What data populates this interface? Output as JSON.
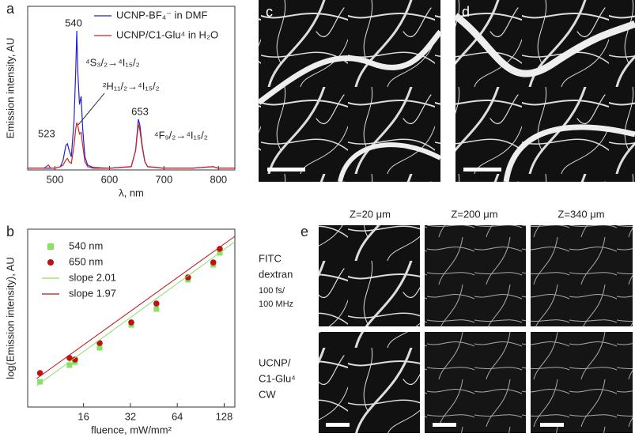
{
  "chart_data": [
    {
      "type": "line",
      "panel": "a",
      "x": [
        450,
        480,
        488,
        492,
        500,
        510,
        515,
        520,
        523,
        526,
        530,
        535,
        538,
        540,
        542,
        545,
        548,
        551,
        555,
        560,
        570,
        600,
        640,
        648,
        653,
        656,
        660,
        665,
        670,
        700,
        750,
        790,
        800,
        830
      ],
      "series": [
        {
          "name": "UCNP-BF₄⁻ in DMF",
          "color": "#2222cc",
          "values": [
            0.01,
            0.01,
            0.01,
            0.01,
            0.01,
            0.02,
            0.06,
            0.15,
            0.16,
            0.12,
            0.08,
            0.3,
            0.6,
            0.85,
            0.6,
            0.4,
            0.45,
            0.25,
            0.08,
            0.03,
            0.015,
            0.01,
            0.02,
            0.12,
            0.31,
            0.27,
            0.15,
            0.05,
            0.02,
            0.01,
            0.01,
            0.02,
            0.01,
            0.01
          ]
        },
        {
          "name": "UCNP/C1-Glu⁴ in H₂O",
          "color": "#cc2222",
          "values": [
            0.01,
            0.01,
            0.03,
            0.01,
            0.01,
            0.02,
            0.03,
            0.06,
            0.07,
            0.05,
            0.04,
            0.15,
            0.25,
            0.29,
            0.27,
            0.22,
            0.23,
            0.15,
            0.05,
            0.02,
            0.01,
            0.01,
            0.02,
            0.12,
            0.28,
            0.24,
            0.14,
            0.05,
            0.02,
            0.01,
            0.01,
            0.02,
            0.01,
            0.01
          ]
        }
      ],
      "xlim": [
        450,
        830
      ],
      "xticks": [
        500,
        600,
        700,
        800
      ],
      "ylim": [
        0,
        1
      ],
      "x_label": "λ, nm",
      "y_label": "Emission intensity, AU",
      "legend": "upper right",
      "annotations": [
        "540",
        "523",
        "653",
        "⁴S₃/₂→⁴I₁₅/₂",
        "²H₁₁/₂→⁴I₁₅/₂",
        "⁴F₉/₂→⁴I₁₅/₂"
      ]
    },
    {
      "type": "scatter",
      "panel": "b",
      "xscale": "log",
      "series": [
        {
          "name": "540 nm",
          "color": "#88e066",
          "marker": "square",
          "x": [
            8.4,
            13.0,
            14.1,
            20.3,
            32.4,
            47,
            75,
            109,
            120
          ],
          "values": [
            1.42,
            2.36,
            2.53,
            3.33,
            4.62,
            5.51,
            7.16,
            8.0,
            8.67
          ]
        },
        {
          "name": "650 nm",
          "color": "#c01010",
          "marker": "circle",
          "x": [
            8.4,
            13.0,
            14.1,
            20.3,
            32.4,
            47,
            75,
            109,
            120
          ],
          "values": [
            1.91,
            2.76,
            2.67,
            3.6,
            4.76,
            5.82,
            7.29,
            8.13,
            8.89
          ]
        },
        {
          "name": "slope 2.01",
          "color": "#88e066",
          "type": "line",
          "x": [
            8,
            150
          ],
          "values": [
            1.2,
            9.3
          ]
        },
        {
          "name": "slope 1.97",
          "color": "#c01010",
          "type": "line",
          "x": [
            8,
            150
          ],
          "values": [
            1.6,
            9.6
          ]
        }
      ],
      "xlim": [
        7,
        150
      ],
      "xticks": [
        16,
        32,
        64,
        128
      ],
      "ylim": [
        0,
        10
      ],
      "x_label": "fluence, mW/mm²",
      "y_label": "log(Emission intensity), AU",
      "legend": "upper left"
    }
  ],
  "figure": {
    "panel_c": "c",
    "panel_d": "d",
    "panel_e": "e",
    "columns": [
      "Z=20 μm",
      "Z=200 μm",
      "Z=340 μm"
    ],
    "rows": [
      {
        "label": [
          "FITC",
          "dextran"
        ],
        "sub": [
          "100 fs/",
          "100 MHz"
        ]
      },
      {
        "label": [
          "UCNP/",
          "C1-Glu⁴"
        ],
        "sub": [
          "CW"
        ]
      }
    ]
  }
}
